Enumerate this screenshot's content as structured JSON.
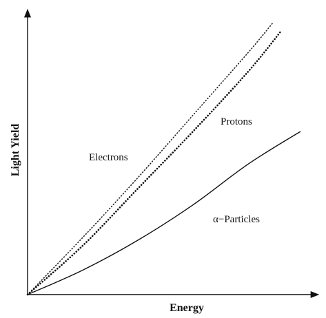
{
  "chart_data": {
    "type": "line",
    "xlabel": "Energy",
    "ylabel": "Light Yield",
    "xlim": [
      0,
      1
    ],
    "ylim": [
      0,
      1
    ],
    "ticks": false,
    "grid": false,
    "legend": "none",
    "series": [
      {
        "name": "Electrons",
        "style": "dotted-fine",
        "color": "#222222",
        "x": [
          0,
          0.2,
          0.4,
          0.6,
          0.8,
          0.89
        ],
        "y": [
          0,
          0.21,
          0.43,
          0.66,
          0.89,
          1.0
        ]
      },
      {
        "name": "Protons",
        "style": "dotted-bold",
        "color": "#111111",
        "x": [
          0,
          0.2,
          0.4,
          0.6,
          0.8,
          0.92
        ],
        "y": [
          0,
          0.18,
          0.39,
          0.6,
          0.82,
          0.97
        ]
      },
      {
        "name": "α−Particles",
        "style": "solid",
        "color": "#111111",
        "x": [
          0,
          0.2,
          0.4,
          0.6,
          0.8,
          0.99
        ],
        "y": [
          0,
          0.09,
          0.2,
          0.33,
          0.48,
          0.6
        ]
      }
    ]
  }
}
